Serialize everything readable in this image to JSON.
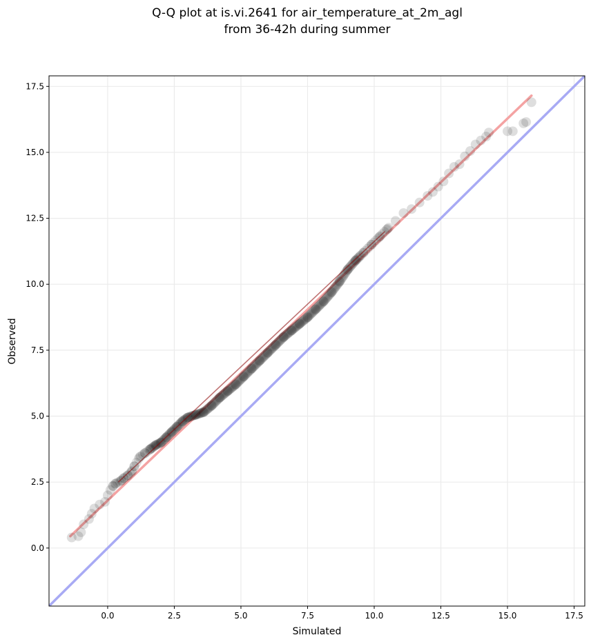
{
  "chart_data": {
    "type": "scatter",
    "title_lines": [
      "Q-Q plot at is.vi.2641 for air_temperature_at_2m_agl",
      "from 36-42h during summer"
    ],
    "xlabel": "Simulated",
    "ylabel": "Observed",
    "xlim": [
      -2.2,
      17.9
    ],
    "ylim": [
      -2.2,
      17.9
    ],
    "xticks": [
      0.0,
      2.5,
      5.0,
      7.5,
      10.0,
      12.5,
      15.0,
      17.5
    ],
    "yticks": [
      0.0,
      2.5,
      5.0,
      7.5,
      10.0,
      12.5,
      15.0,
      17.5
    ],
    "xtick_labels": [
      "0.0",
      "2.5",
      "5.0",
      "7.5",
      "10.0",
      "12.5",
      "15.0",
      "17.5"
    ],
    "ytick_labels": [
      "0.0",
      "2.5",
      "5.0",
      "7.5",
      "10.0",
      "12.5",
      "15.0",
      "17.5"
    ],
    "grid": true,
    "quantile_points": {
      "sim": [
        -1.35,
        -1.1,
        -1.0,
        -0.9,
        -0.7,
        -0.6,
        -0.5,
        -0.3,
        -0.1,
        0.0,
        0.1,
        0.2,
        0.3,
        0.5,
        0.6,
        0.75,
        0.9,
        1.0,
        1.2,
        1.4,
        1.6,
        1.8,
        2.0,
        2.2,
        2.4,
        2.6,
        2.8,
        3.0,
        3.3,
        3.6,
        3.9,
        4.2,
        4.5,
        4.8,
        5.1,
        5.4,
        5.7,
        6.0,
        6.3,
        6.6,
        6.9,
        7.2,
        7.5,
        7.8,
        8.1,
        8.4,
        8.7,
        9.0,
        9.3,
        9.6,
        9.9,
        10.2,
        10.5,
        10.8,
        11.1,
        11.4,
        11.7,
        12.0,
        12.2,
        12.4,
        12.6,
        12.8,
        13.0,
        13.2,
        13.4,
        13.6,
        13.8,
        14.0,
        14.2,
        14.3,
        15.0,
        15.2,
        15.6,
        15.7,
        15.9
      ],
      "obs": [
        0.4,
        0.45,
        0.6,
        0.9,
        1.1,
        1.3,
        1.5,
        1.65,
        1.75,
        2.0,
        2.2,
        2.35,
        2.45,
        2.55,
        2.65,
        2.75,
        2.9,
        3.1,
        3.45,
        3.6,
        3.75,
        3.9,
        4.0,
        4.2,
        4.4,
        4.6,
        4.8,
        4.95,
        5.05,
        5.15,
        5.4,
        5.7,
        5.95,
        6.2,
        6.5,
        6.8,
        7.1,
        7.4,
        7.7,
        8.0,
        8.25,
        8.5,
        8.75,
        9.05,
        9.35,
        9.7,
        10.1,
        10.55,
        10.9,
        11.2,
        11.5,
        11.8,
        12.1,
        12.4,
        12.7,
        12.85,
        13.1,
        13.35,
        13.5,
        13.7,
        13.9,
        14.2,
        14.45,
        14.55,
        14.85,
        15.05,
        15.3,
        15.45,
        15.6,
        15.75,
        15.8,
        15.8,
        16.1,
        16.15,
        16.9
      ]
    },
    "fit_line": {
      "x": [
        -1.4,
        15.9
      ],
      "y": [
        0.45,
        17.15
      ],
      "color": "#f4a3a3"
    },
    "identity_line": {
      "x": [
        -2.2,
        17.9
      ],
      "y": [
        -2.2,
        17.9
      ],
      "color": "#a8aaf4"
    },
    "point_color": "#000000",
    "fit_overlay_color": "#8b0000"
  }
}
